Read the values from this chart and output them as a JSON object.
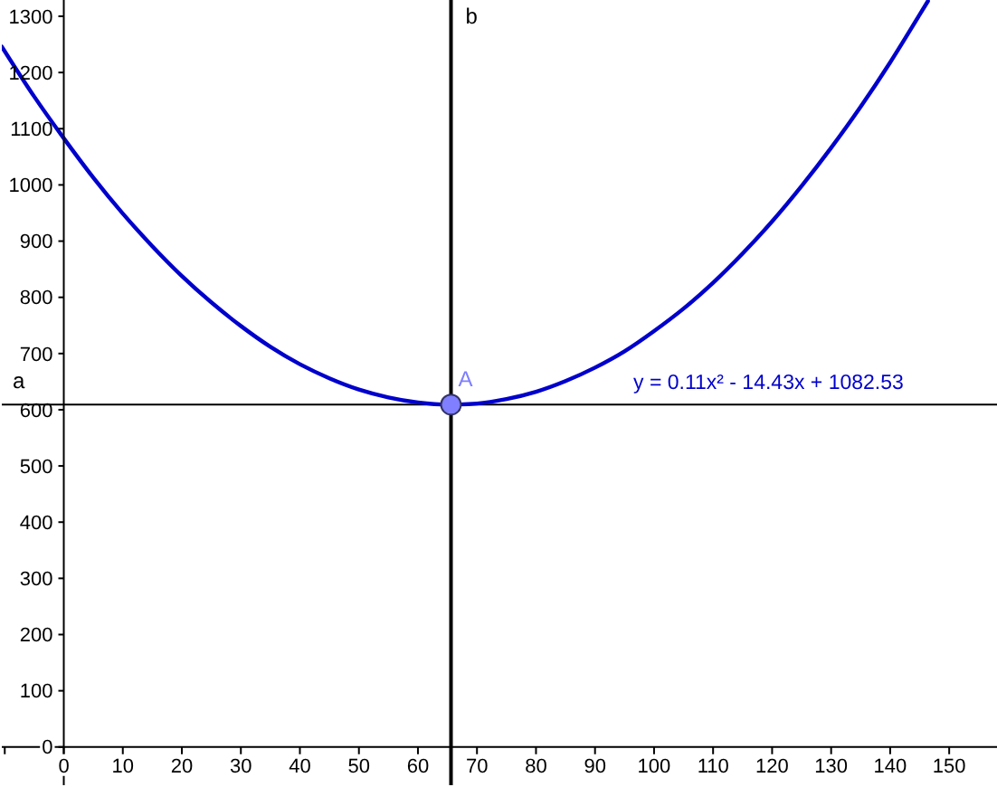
{
  "chart_data": {
    "type": "line",
    "x": [
      -10.5,
      -5,
      0,
      5,
      10,
      15,
      20,
      25,
      30,
      35,
      40,
      45,
      50,
      55,
      60,
      65,
      70,
      75,
      80,
      85,
      90,
      95,
      100,
      105,
      110,
      115,
      120,
      125,
      130,
      135,
      140,
      145,
      146.4
    ],
    "series": [
      {
        "name": "y = 0.11x² - 14.43x + 1082.53",
        "color": "#0000cc",
        "values": [
          1246,
          1157,
          1083,
          1013,
          949,
          891,
          838,
          791,
          749,
          712,
          681,
          656,
          636,
          622,
          613,
          609,
          611,
          619,
          632,
          651,
          675,
          704,
          740,
          780,
          826,
          878,
          935,
          998,
          1066,
          1139,
          1218,
          1303,
          1327
        ]
      },
      {
        "type": "scatter",
        "name": "A",
        "color": "#7f7fff",
        "marker": "circle",
        "x": [
          65.6
        ],
        "values": [
          609
        ]
      }
    ],
    "xlim": [
      -10.5,
      158.1
    ],
    "ylim": [
      -68,
      1329
    ],
    "xticks": [
      {
        "value": -10,
        "label": null
      },
      0,
      10,
      20,
      30,
      40,
      50,
      60,
      70,
      80,
      90,
      100,
      110,
      120,
      130,
      140,
      150
    ],
    "yticks": [
      0,
      100,
      200,
      300,
      400,
      500,
      600,
      700,
      800,
      900,
      1000,
      1100,
      1200,
      1300
    ],
    "ref_lines": [
      {
        "axis": "y",
        "value": 609,
        "label": "a",
        "color": "#000000"
      },
      {
        "axis": "x",
        "value": 65.6,
        "label": "b",
        "color": "#000000"
      }
    ],
    "legend": false,
    "marker": "none",
    "line_style": "solid"
  }
}
